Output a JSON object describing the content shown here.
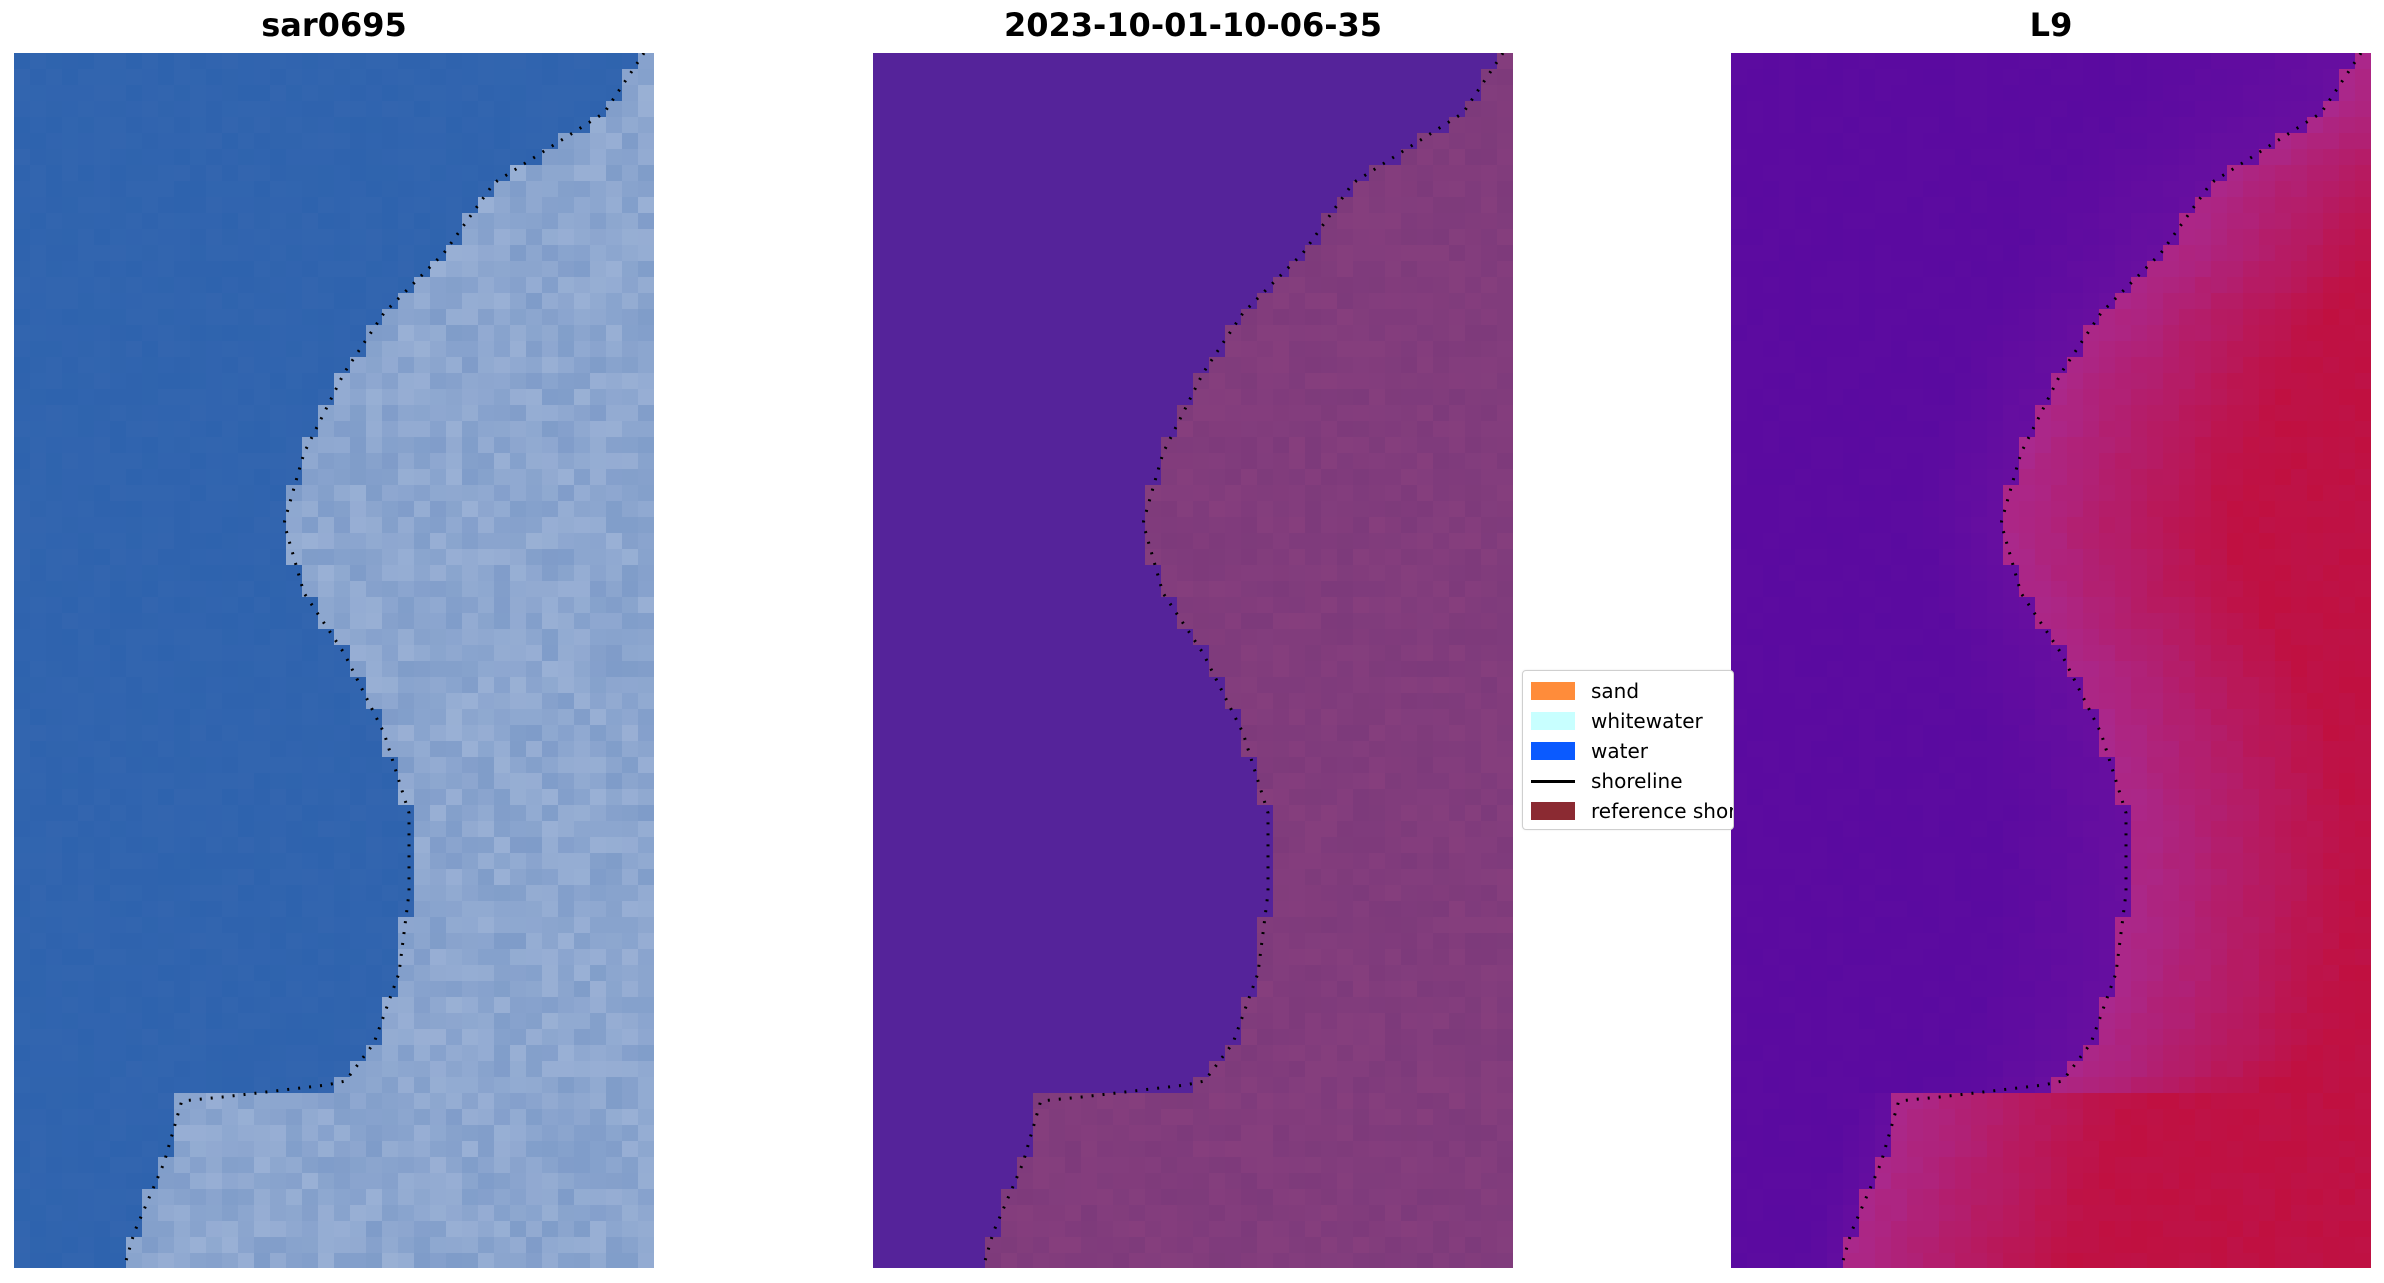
{
  "panels": [
    {
      "title": "sar0695",
      "style": "true-color"
    },
    {
      "title": "2023-10-01-10-06-35",
      "style": "classified"
    },
    {
      "title": "L9",
      "style": "index"
    }
  ],
  "legend": {
    "items": [
      {
        "label": "sand",
        "color": "#ff8c3a",
        "kind": "patch"
      },
      {
        "label": "whitewater",
        "color": "#c8ffff",
        "kind": "patch"
      },
      {
        "label": "water",
        "color": "#0a5aff",
        "kind": "patch"
      },
      {
        "label": "shoreline",
        "color": "#000000",
        "kind": "line"
      },
      {
        "label": "reference shoreline",
        "color": "#8b2a32",
        "kind": "patch"
      }
    ]
  },
  "colors": {
    "sea_true": "#2e63ae",
    "land_true": "#7f9cc9",
    "sea_classified": "#55239a",
    "land_classified": "#7d3a7b",
    "sea_index": "#5a0aa0",
    "land_index": "#c01040",
    "shoreline": "#000000"
  }
}
